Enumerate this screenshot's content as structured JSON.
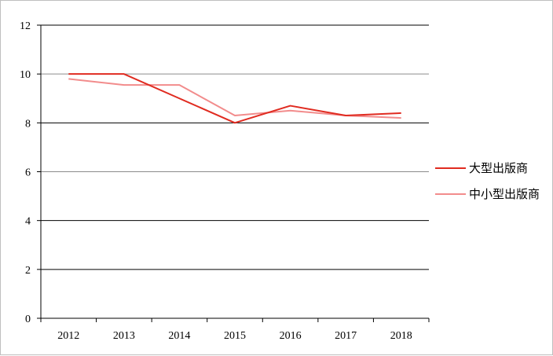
{
  "chart_data": {
    "type": "line",
    "title": "",
    "xlabel": "",
    "ylabel": "",
    "x": [
      "2012",
      "2013",
      "2014",
      "2015",
      "2016",
      "2017",
      "2018"
    ],
    "ylim": [
      0,
      12
    ],
    "yticks": [
      0,
      2,
      4,
      6,
      8,
      10,
      12
    ],
    "grid": "horizontal",
    "legend_position": "right",
    "series": [
      {
        "name": "大型出版商",
        "color": "#e02b20",
        "values": [
          10.0,
          10.0,
          9.0,
          8.0,
          8.7,
          8.3,
          8.4
        ]
      },
      {
        "name": "中小型出版商",
        "color": "#f28c8c",
        "values": [
          9.8,
          9.55,
          9.55,
          8.3,
          8.5,
          8.3,
          8.2
        ]
      }
    ]
  }
}
